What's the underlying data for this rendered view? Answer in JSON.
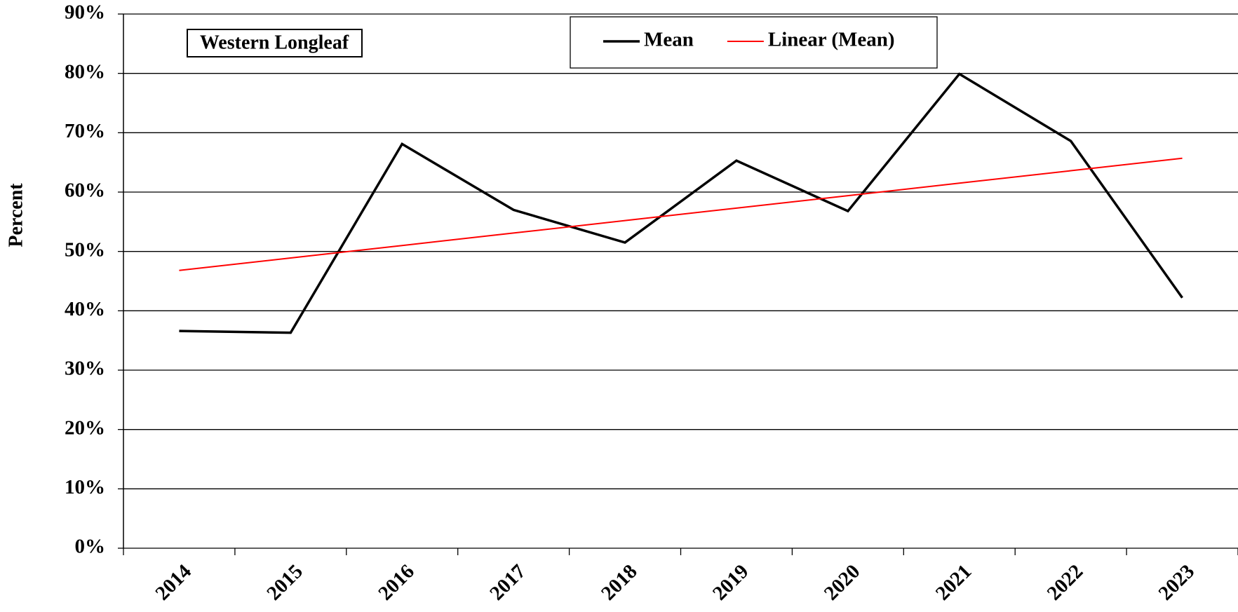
{
  "chart_data": {
    "type": "line",
    "title": "Western Longleaf",
    "y_label": "Percent",
    "categories": [
      "2014",
      "2015",
      "2016",
      "2017",
      "2018",
      "2019",
      "2020",
      "2021",
      "2022",
      "2023"
    ],
    "series": [
      {
        "name": "Mean",
        "color": "#000000",
        "values": [
          36.6,
          36.3,
          68.1,
          57.0,
          51.5,
          65.3,
          56.8,
          79.9,
          68.6,
          42.2
        ]
      },
      {
        "name": "Linear (Mean)",
        "color": "#ff0000",
        "values": [
          46.8,
          48.9,
          51.0,
          53.1,
          55.2,
          57.3,
          59.4,
          61.5,
          63.6,
          65.7
        ]
      }
    ],
    "ylim": [
      0,
      90
    ],
    "yticks": [
      {
        "value": 0,
        "label": "0%"
      },
      {
        "value": 10,
        "label": "10%"
      },
      {
        "value": 20,
        "label": "20%"
      },
      {
        "value": 30,
        "label": "30%"
      },
      {
        "value": 40,
        "label": "40%"
      },
      {
        "value": 50,
        "label": "50%"
      },
      {
        "value": 60,
        "label": "60%"
      },
      {
        "value": 70,
        "label": "70%"
      },
      {
        "value": 80,
        "label": "80%"
      },
      {
        "value": 90,
        "label": "90%"
      }
    ],
    "grid": true,
    "legend": "top"
  }
}
